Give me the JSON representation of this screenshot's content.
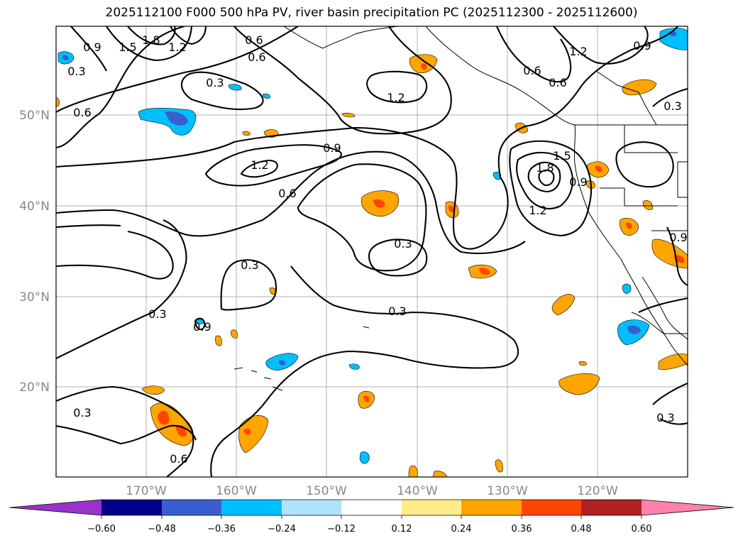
{
  "title": "2025112100 F000 500 hPa PV, river basin precipitation PC (2025112300 - 2025112600)",
  "latitude_labels": [
    "50°N",
    "40°N",
    "30°N",
    "20°N"
  ],
  "longitude_labels": [
    "170°W",
    "160°W",
    "150°W",
    "140°W",
    "130°W",
    "120°W"
  ],
  "contour_labels": [
    "0.9",
    "1.5",
    "1.8",
    "1.2",
    "0.3",
    "0.6",
    "0.3",
    "0.6",
    "0.9",
    "1.2",
    "0.6",
    "0.6",
    "1.2",
    "0.9",
    "1.2",
    "0.6",
    "1.8",
    "1.5",
    "0.9",
    "1.2",
    "0.3",
    "0.3",
    "0.3",
    "0.3",
    "0.9",
    "0.3",
    "0.6",
    "0.3",
    "0.9",
    "0.3",
    "0.6"
  ],
  "colorbar": {
    "ticks": [
      "−0.60",
      "−0.48",
      "−0.36",
      "−0.24",
      "−0.12",
      "0.12",
      "0.24",
      "0.36",
      "0.48",
      "0.60"
    ],
    "colors": {
      "lt_neg060": "#9933cc",
      "neg060_neg048": "#00008b",
      "neg048_neg036": "#3a5fcd",
      "neg036_neg024": "#00bfff",
      "neg024_neg012": "#b0e2ff",
      "neg012_012": "#ffffff",
      "pos012_024": "#ffec8b",
      "pos024_036": "#ffa500",
      "pos036_048": "#ff4500",
      "pos048_060": "#b22222",
      "gt_060": "#ff82ab"
    }
  }
}
